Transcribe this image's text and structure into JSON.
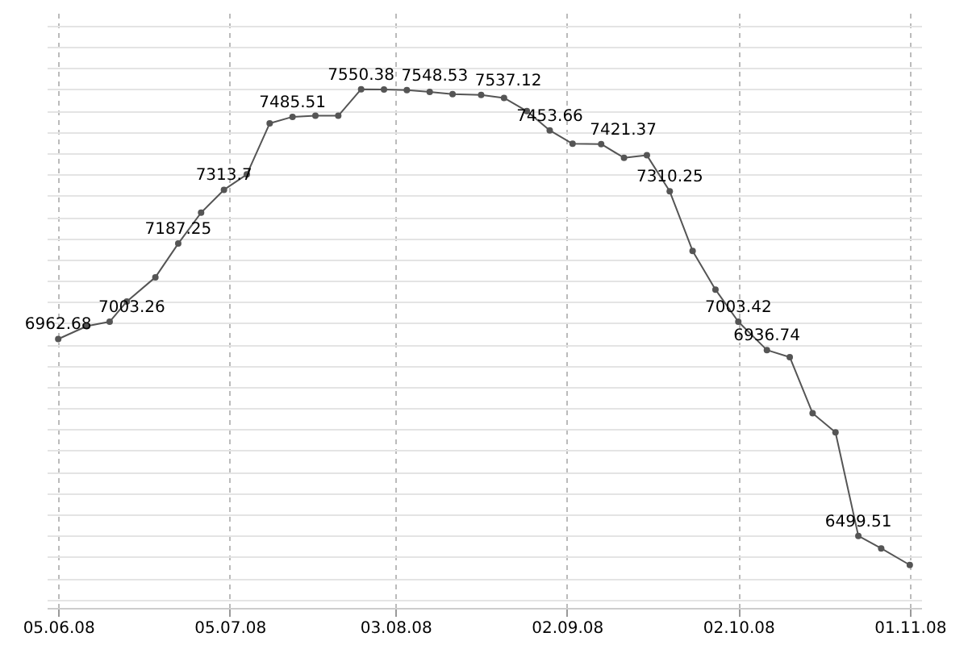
{
  "chart_data": {
    "type": "line",
    "x": [
      "2008-06-05",
      "2008-06-10",
      "2008-06-14",
      "2008-06-17",
      "2008-06-22",
      "2008-06-26",
      "2008-06-30",
      "2008-07-04",
      "2008-07-08",
      "2008-07-12",
      "2008-07-16",
      "2008-07-20",
      "2008-07-24",
      "2008-07-28",
      "2008-08-01",
      "2008-08-05",
      "2008-08-09",
      "2008-08-13",
      "2008-08-18",
      "2008-08-22",
      "2008-08-26",
      "2008-08-30",
      "2008-09-03",
      "2008-09-08",
      "2008-09-12",
      "2008-09-16",
      "2008-09-20",
      "2008-09-24",
      "2008-09-28",
      "2008-10-02",
      "2008-10-07",
      "2008-10-11",
      "2008-10-15",
      "2008-10-19",
      "2008-10-23",
      "2008-10-27",
      "2008-11-01"
    ],
    "series": [
      {
        "color": "#555555",
        "values": [
          6962.68,
          6993,
          7003.26,
          7051,
          7108,
          7187.25,
          7260,
          7313.7,
          7350,
          7470,
          7485.51,
          7488,
          7488,
          7550.38,
          7550,
          7548.53,
          7544,
          7539,
          7537.12,
          7530,
          7499,
          7453.66,
          7422,
          7421.37,
          7389,
          7395,
          7310.25,
          7170,
          7079,
          7003.42,
          6936.74,
          6920,
          6788,
          6743,
          6499.51,
          6470,
          6431
        ],
        "value_labels": [
          "6962.68",
          null,
          "7003.26",
          null,
          null,
          "7187.25",
          null,
          "7313.7",
          null,
          null,
          "7485.51",
          null,
          null,
          "7550.38",
          null,
          "7548.53",
          null,
          null,
          "7537.12",
          null,
          null,
          "7453.66",
          null,
          "7421.37",
          null,
          null,
          "7310.25",
          null,
          null,
          "7003.42",
          "6936.74",
          null,
          null,
          null,
          "6499.51",
          null,
          null
        ]
      }
    ],
    "xlim": [
      "2008-06-03",
      "2008-11-03"
    ],
    "xticks": [
      {
        "value": "2008-06-05",
        "label": "05.06.08"
      },
      {
        "value": "2008-07-05",
        "label": "05.07.08"
      },
      {
        "value": "2008-08-03",
        "label": "03.08.08"
      },
      {
        "value": "2008-09-02",
        "label": "02.09.08"
      },
      {
        "value": "2008-10-02",
        "label": "02.10.08"
      },
      {
        "value": "2008-11-01",
        "label": "01.11.08"
      }
    ],
    "ylim": [
      6330,
      7730
    ],
    "tick_labels": "x",
    "grid": true,
    "marker": "circle",
    "line_style": "solid"
  }
}
